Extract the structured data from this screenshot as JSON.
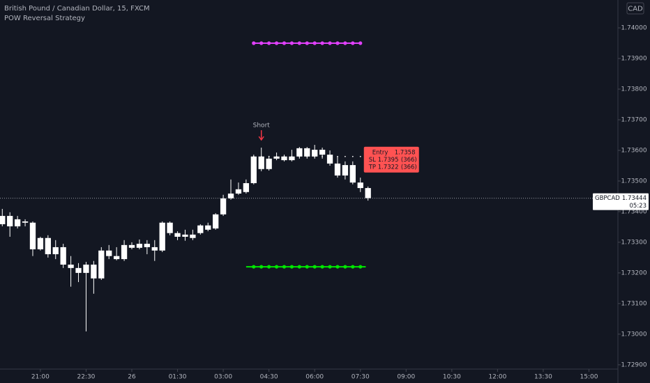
{
  "chart_data": {
    "type": "candlestick",
    "title": "British Pound / Canadian Dollar, 15, FXCM",
    "subtitle": "POW Reversal Strategy",
    "currency": "CAD",
    "symbol": "GBPCAD",
    "last_price": 1.73444,
    "countdown": "05:23",
    "open": [
      1.73359,
      1.73386,
      1.73352,
      1.73368,
      1.73364,
      1.73277,
      1.73314,
      1.73261,
      1.73284,
      1.73227,
      1.73216,
      1.732,
      1.73227,
      1.73182,
      1.73273,
      1.73255,
      1.73245,
      1.73291,
      1.73282,
      1.73295,
      1.73284,
      1.73273,
      1.73364,
      1.7333,
      1.73318,
      1.73325,
      1.7333,
      1.73355,
      1.73345,
      1.73391,
      1.73443,
      1.73459,
      1.73464,
      1.73493,
      1.7358,
      1.73539,
      1.73573,
      1.7358,
      1.73568,
      1.7358,
      1.73607,
      1.7358,
      1.73602,
      1.73586,
      1.73557,
      1.73518,
      1.73552,
      1.73495,
      1.73477
    ],
    "high": [
      1.73409,
      1.73398,
      1.73386,
      1.73375,
      1.73368,
      1.73318,
      1.73323,
      1.73307,
      1.73295,
      1.73255,
      1.73232,
      1.73236,
      1.73239,
      1.73284,
      1.73291,
      1.73284,
      1.73307,
      1.733,
      1.73309,
      1.73307,
      1.73307,
      1.73368,
      1.73368,
      1.73336,
      1.73341,
      1.73341,
      1.73359,
      1.73364,
      1.73395,
      1.73455,
      1.73505,
      1.73495,
      1.73505,
      1.73586,
      1.73609,
      1.73582,
      1.73593,
      1.73586,
      1.73602,
      1.73611,
      1.73611,
      1.73618,
      1.73609,
      1.736,
      1.7358,
      1.73564,
      1.73564,
      1.73511,
      1.73482
    ],
    "low": [
      1.73352,
      1.73318,
      1.73345,
      1.73352,
      1.73255,
      1.73273,
      1.7325,
      1.73245,
      1.73216,
      1.73155,
      1.7317,
      1.73009,
      1.73132,
      1.73177,
      1.73245,
      1.73241,
      1.73239,
      1.73277,
      1.73277,
      1.73261,
      1.73239,
      1.73268,
      1.73323,
      1.73307,
      1.73305,
      1.73307,
      1.73325,
      1.73336,
      1.73341,
      1.73386,
      1.73439,
      1.73455,
      1.73459,
      1.73489,
      1.73532,
      1.73534,
      1.73568,
      1.73564,
      1.73564,
      1.73573,
      1.73573,
      1.73573,
      1.73573,
      1.7355,
      1.73511,
      1.73505,
      1.73489,
      1.73464,
      1.73436
    ],
    "close": [
      1.73386,
      1.73352,
      1.73375,
      1.73364,
      1.73277,
      1.73314,
      1.73261,
      1.73284,
      1.73227,
      1.73216,
      1.732,
      1.73227,
      1.73182,
      1.73273,
      1.73255,
      1.73245,
      1.73291,
      1.73282,
      1.73295,
      1.73284,
      1.73273,
      1.73364,
      1.7333,
      1.73318,
      1.73325,
      1.73314,
      1.73355,
      1.73341,
      1.73391,
      1.73443,
      1.73459,
      1.73473,
      1.73493,
      1.7358,
      1.73539,
      1.73573,
      1.7358,
      1.73568,
      1.7358,
      1.73607,
      1.7358,
      1.73602,
      1.73586,
      1.73557,
      1.73518,
      1.73552,
      1.73495,
      1.73477,
      1.73444
    ],
    "color": "#ffffff",
    "ylim": [
      1.72886,
      1.74091
    ],
    "yticks": [
      {
        "value": 1.74,
        "label": "1.74000"
      },
      {
        "value": 1.739,
        "label": "1.73900"
      },
      {
        "value": 1.738,
        "label": "1.73800"
      },
      {
        "value": 1.737,
        "label": "1.73700"
      },
      {
        "value": 1.736,
        "label": "1.73600"
      },
      {
        "value": 1.735,
        "label": "1.73500"
      },
      {
        "value": 1.734,
        "label": "1.73400"
      },
      {
        "value": 1.733,
        "label": "1.73300"
      },
      {
        "value": 1.732,
        "label": "1.73200"
      },
      {
        "value": 1.731,
        "label": "1.73100"
      },
      {
        "value": 1.73,
        "label": "1.73000"
      },
      {
        "value": 1.729,
        "label": "1.72900"
      }
    ],
    "xlim": [
      -0.3,
      80.8
    ],
    "xticks": [
      {
        "value": 5,
        "label": "21:00"
      },
      {
        "value": 11,
        "label": "22:30"
      },
      {
        "value": 17,
        "label": "26"
      },
      {
        "value": 23,
        "label": "01:30"
      },
      {
        "value": 29,
        "label": "03:00"
      },
      {
        "value": 35,
        "label": "04:30"
      },
      {
        "value": 41,
        "label": "06:00"
      },
      {
        "value": 47,
        "label": "07:30"
      },
      {
        "value": 53,
        "label": "09:00"
      },
      {
        "value": 59,
        "label": "10:30"
      },
      {
        "value": 65,
        "label": "12:00"
      },
      {
        "value": 71,
        "label": "13:30"
      },
      {
        "value": 77,
        "label": "15:00"
      }
    ],
    "strategy": {
      "signal": "Short",
      "signal_index": 34,
      "from": 33,
      "to": 47,
      "entry_label": "Entry",
      "entry": 1.7358,
      "sl_label": "SL",
      "sl": 1.7395,
      "sl_ticks": {
        "value": 366,
        "label": "(366)"
      },
      "sl_color": "#e040fb",
      "tp_label": "TP",
      "tp": 1.7322,
      "tp_ticks": {
        "value": 366,
        "label": "(366)"
      },
      "tp_color": "#00e600"
    }
  }
}
